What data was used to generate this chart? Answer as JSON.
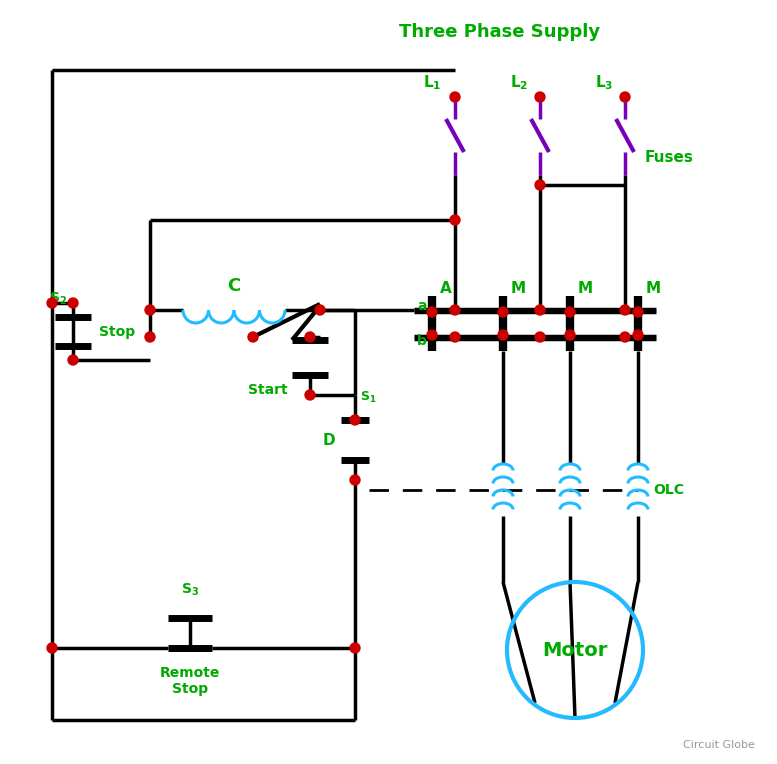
{
  "bg_color": "#ffffff",
  "lc": "#000000",
  "gc": "#00aa00",
  "rc": "#cc0000",
  "bc": "#22bbff",
  "pc": "#7700bb",
  "figsize": [
    7.77,
    7.64
  ],
  "dpi": 100,
  "watermark": "Circuit Globe",
  "supply_title": "Three Phase Supply",
  "motor_label": "Motor",
  "fuses_label": "Fuses",
  "olc_label": "OLC",
  "stop_label": "Stop",
  "start_label": "Start",
  "remote_stop_label": "Remote\nStop"
}
